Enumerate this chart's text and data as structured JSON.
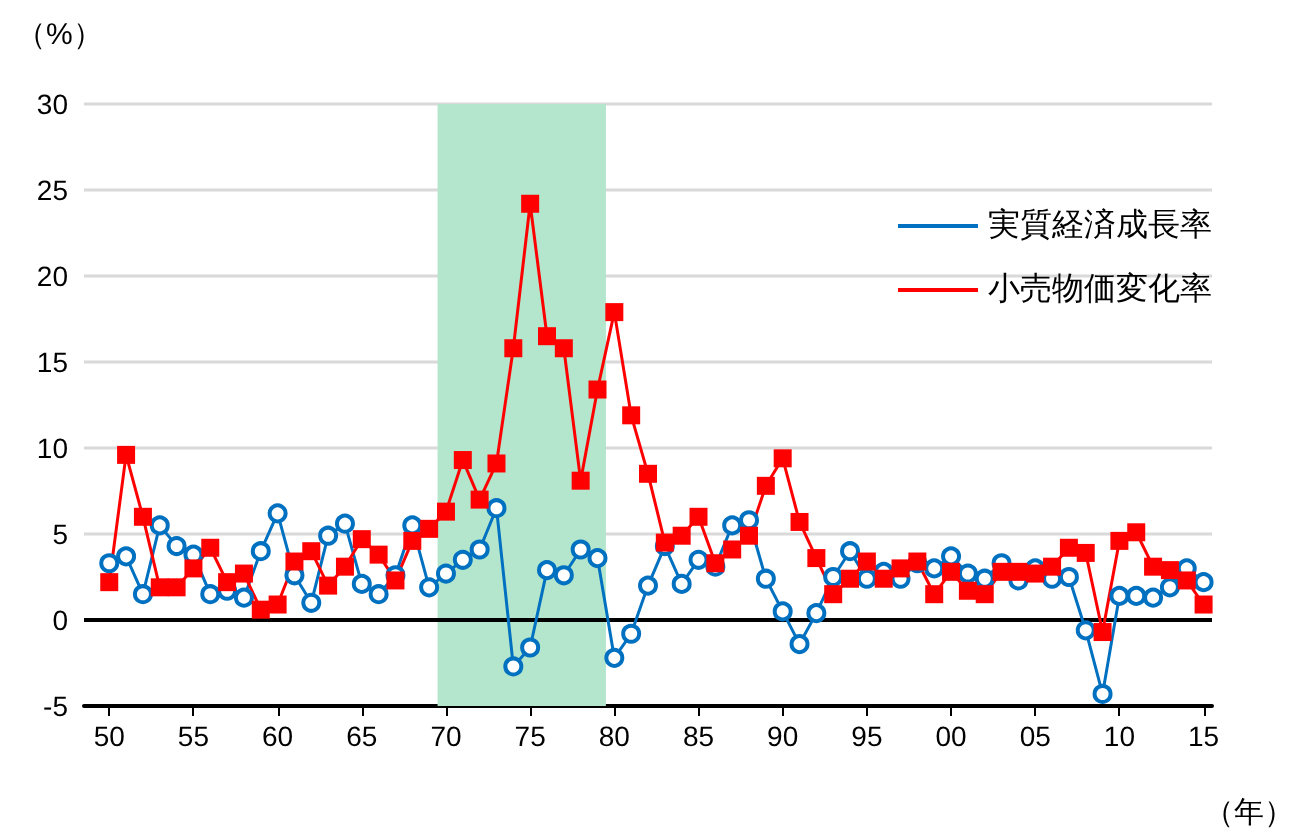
{
  "chart_data": {
    "type": "line",
    "xlabel": "（年）",
    "ylabel": "（%）",
    "x": [
      1950,
      1951,
      1952,
      1953,
      1954,
      1955,
      1956,
      1957,
      1958,
      1959,
      1960,
      1961,
      1962,
      1963,
      1964,
      1965,
      1966,
      1967,
      1968,
      1969,
      1970,
      1971,
      1972,
      1973,
      1974,
      1975,
      1976,
      1977,
      1978,
      1979,
      1980,
      1981,
      1982,
      1983,
      1984,
      1985,
      1986,
      1987,
      1988,
      1989,
      1990,
      1991,
      1992,
      1993,
      1994,
      1995,
      1996,
      1997,
      1998,
      1999,
      2000,
      2001,
      2002,
      2003,
      2004,
      2005,
      2006,
      2007,
      2008,
      2009,
      2010,
      2011,
      2012,
      2013,
      2014,
      2015
    ],
    "series": [
      {
        "name": "実質経済成長率",
        "color": "#0070c0",
        "marker": "circle",
        "values": [
          3.3,
          3.7,
          1.5,
          5.5,
          4.3,
          3.8,
          1.5,
          1.7,
          1.3,
          4.0,
          6.2,
          2.6,
          1.0,
          4.9,
          5.6,
          2.1,
          1.5,
          2.6,
          5.5,
          1.9,
          2.7,
          3.5,
          4.1,
          6.5,
          -2.7,
          -1.6,
          2.9,
          2.6,
          4.1,
          3.6,
          -2.2,
          -0.8,
          2.0,
          4.3,
          2.1,
          3.5,
          3.1,
          5.5,
          5.8,
          2.4,
          0.5,
          -1.4,
          0.4,
          2.5,
          4.0,
          2.4,
          2.8,
          2.4,
          3.3,
          3.0,
          3.7,
          2.7,
          2.4,
          3.3,
          2.3,
          3.0,
          2.4,
          2.5,
          -0.6,
          -4.3,
          1.4,
          1.4,
          1.3,
          1.9,
          3.0,
          2.2
        ]
      },
      {
        "name": "小売物価変化率",
        "color": "#ff0000",
        "marker": "square",
        "values": [
          2.2,
          9.6,
          6.0,
          1.9,
          1.9,
          3.0,
          4.2,
          2.2,
          2.7,
          0.6,
          0.9,
          3.4,
          4.0,
          2.0,
          3.1,
          4.7,
          3.8,
          2.3,
          4.6,
          5.3,
          6.3,
          9.3,
          7.0,
          9.1,
          15.8,
          24.2,
          16.5,
          15.8,
          8.1,
          13.4,
          17.9,
          11.9,
          8.5,
          4.5,
          4.9,
          6.0,
          3.3,
          4.1,
          4.9,
          7.8,
          9.4,
          5.7,
          3.6,
          1.5,
          2.4,
          3.4,
          2.4,
          3.0,
          3.4,
          1.5,
          2.8,
          1.7,
          1.5,
          2.8,
          2.8,
          2.7,
          3.1,
          4.2,
          3.9,
          -0.7,
          4.6,
          5.1,
          3.1,
          2.9,
          2.3,
          0.9
        ]
      }
    ],
    "xlim": [
      1948.5,
      2015.5
    ],
    "xticks": [
      {
        "value": 1950,
        "label": "50"
      },
      {
        "value": 1955,
        "label": "55"
      },
      {
        "value": 1960,
        "label": "60"
      },
      {
        "value": 1965,
        "label": "65"
      },
      {
        "value": 1970,
        "label": "70"
      },
      {
        "value": 1975,
        "label": "75"
      },
      {
        "value": 1980,
        "label": "80"
      },
      {
        "value": 1985,
        "label": "85"
      },
      {
        "value": 1990,
        "label": "90"
      },
      {
        "value": 1995,
        "label": "95"
      },
      {
        "value": 2000,
        "label": "00"
      },
      {
        "value": 2005,
        "label": "05"
      },
      {
        "value": 2010,
        "label": "10"
      },
      {
        "value": 2015,
        "label": "15"
      }
    ],
    "ylim": [
      -5,
      30
    ],
    "yticks": [
      -5,
      0,
      5,
      10,
      15,
      20,
      25,
      30
    ],
    "grid": "y",
    "legend": "top right",
    "line_style": "solid",
    "ref_lines": [
      {
        "axis": "y",
        "value": 0,
        "color": "#000000"
      }
    ],
    "bands": [
      {
        "axis": "x",
        "from": 1969.5,
        "to": 1979.5,
        "color": "#b3e6cc"
      }
    ]
  }
}
